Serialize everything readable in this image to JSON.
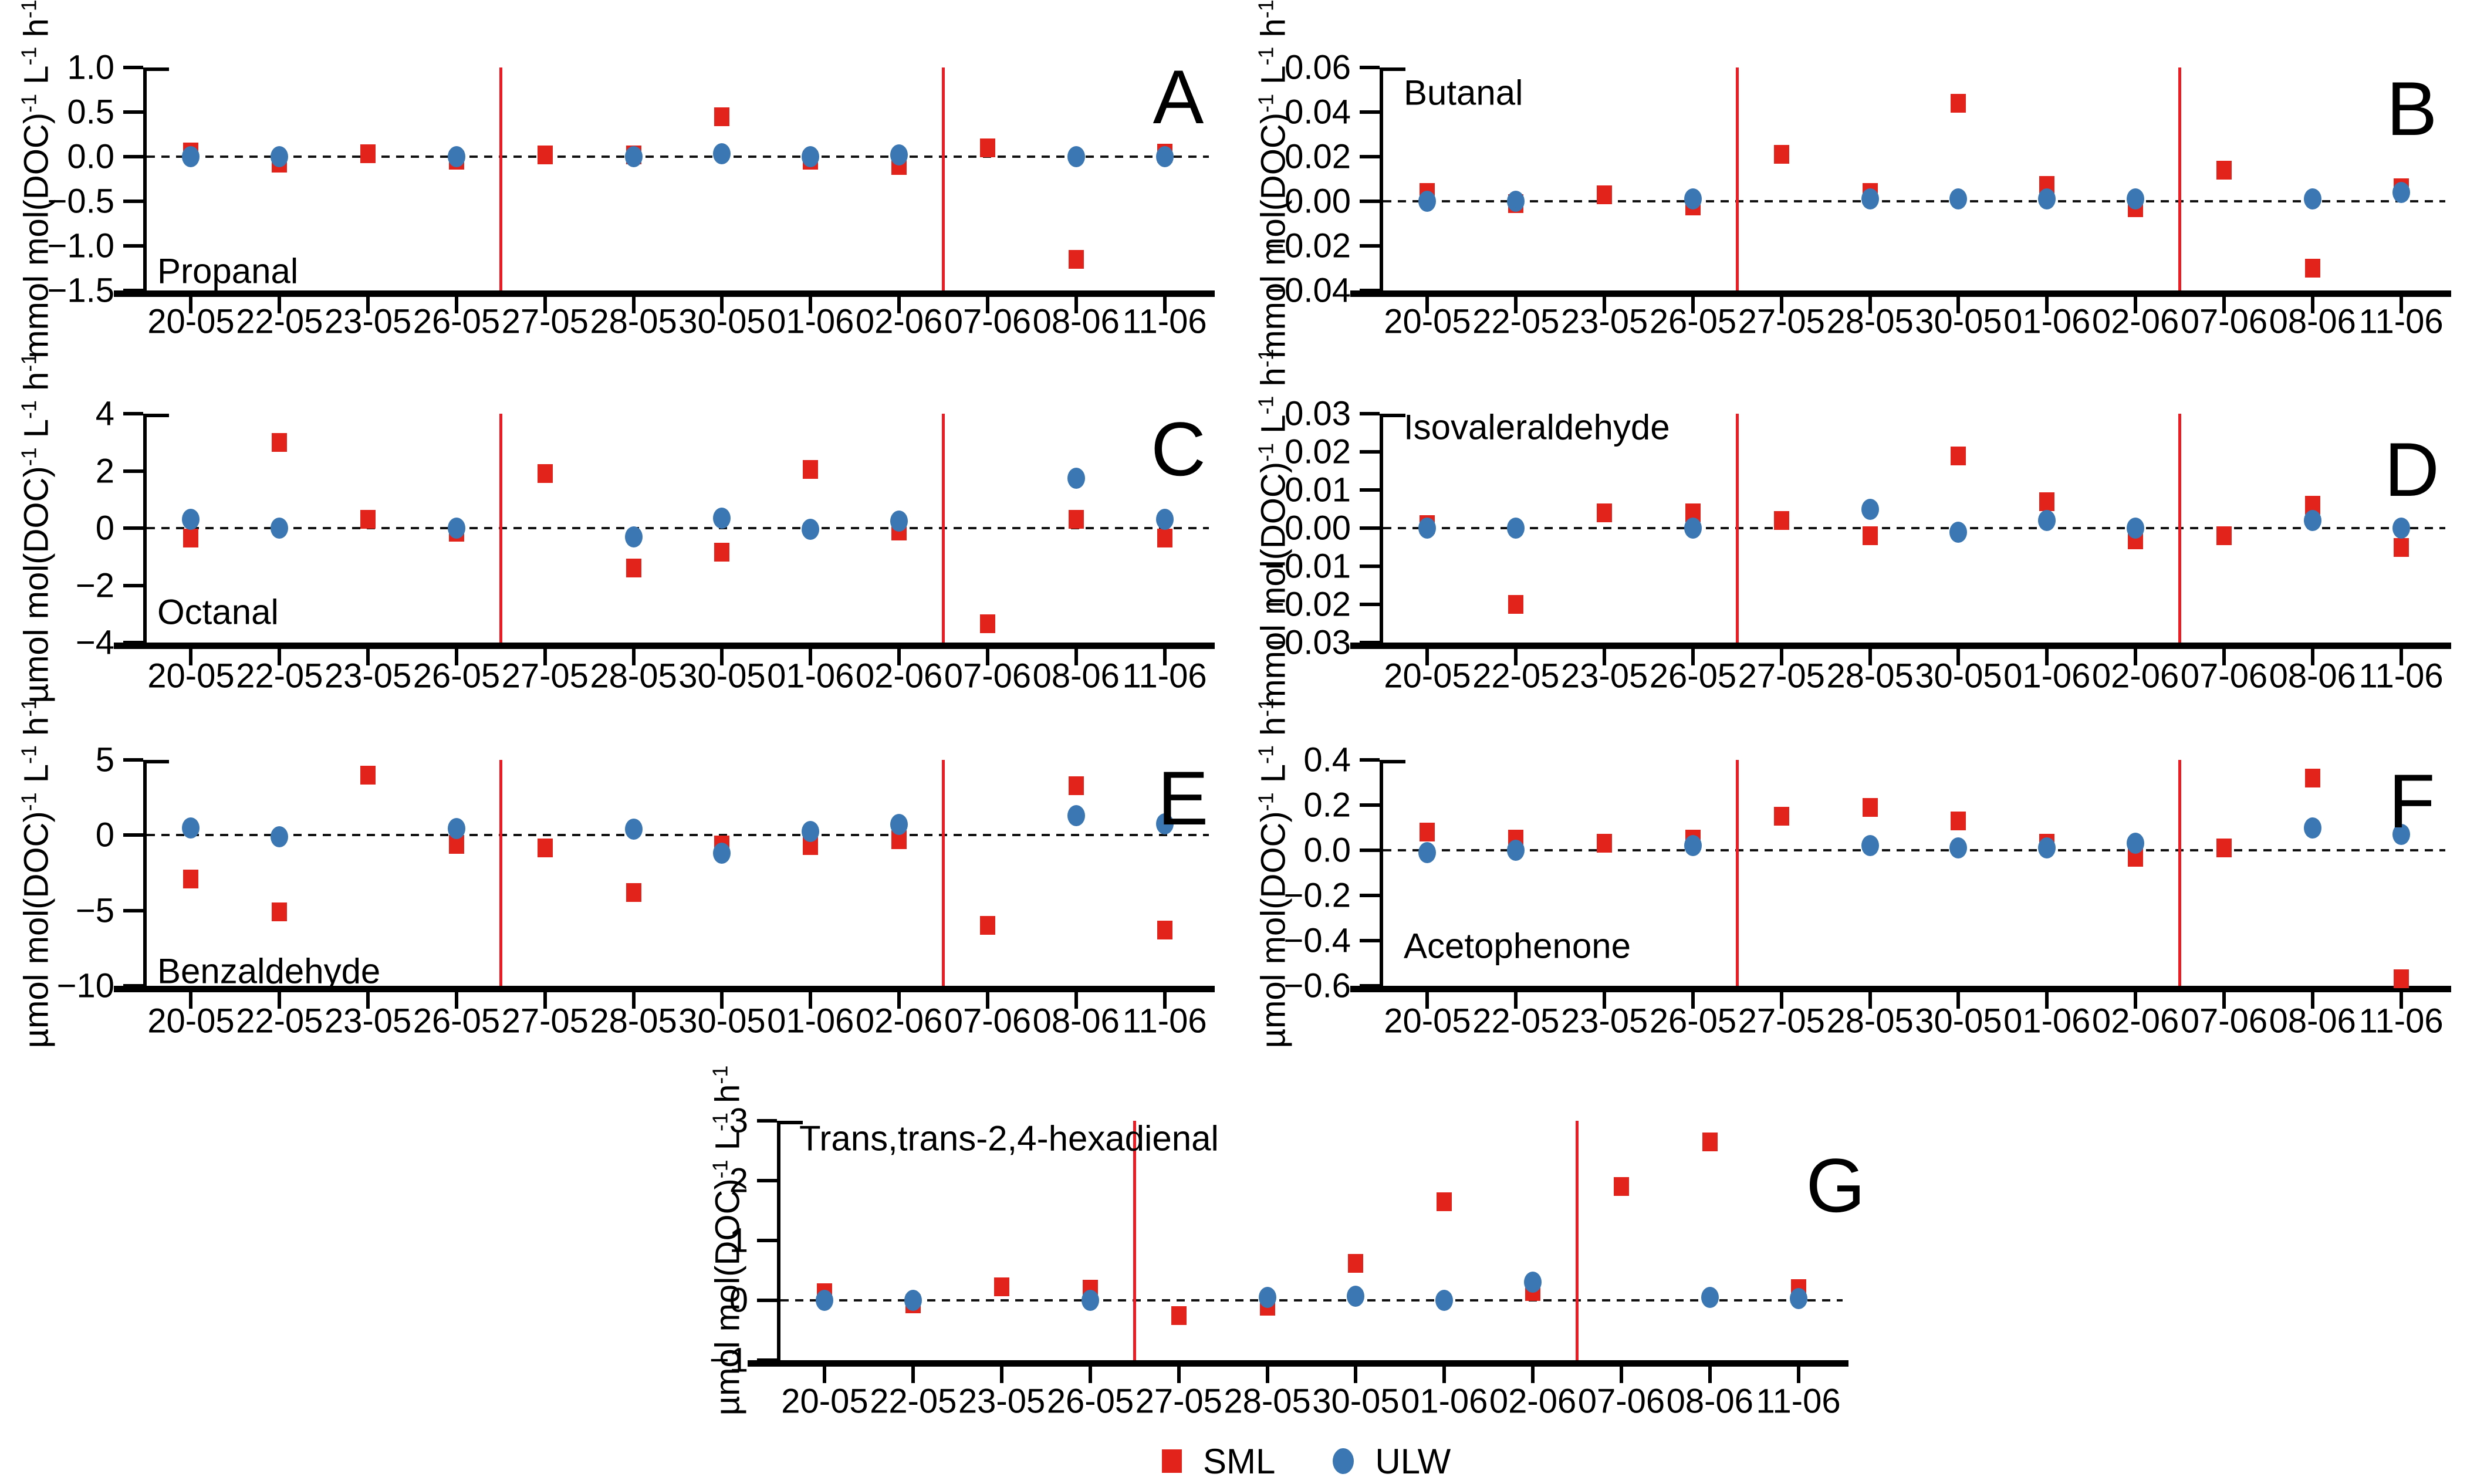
{
  "legend": {
    "items": [
      {
        "label": "SML",
        "marker": "square",
        "color": "#e2231b"
      },
      {
        "label": "ULW",
        "marker": "circle",
        "color": "#3b77b3"
      }
    ]
  },
  "colors": {
    "sml_marker": "#e2231b",
    "ulw_marker": "#3b77b3",
    "separator_line": "#ec1c24",
    "axis": "#000000"
  },
  "chart_data": {
    "type": "scatter",
    "categories": [
      "20-05",
      "22-05",
      "23-05",
      "26-05",
      "27-05",
      "28-05",
      "30-05",
      "01-06",
      "02-06",
      "07-06",
      "08-06",
      "11-06"
    ],
    "series_names": [
      "SML",
      "ULW"
    ],
    "separators_between": [
      [
        "26-05",
        "27-05"
      ],
      [
        "02-06",
        "07-06"
      ]
    ],
    "legend_position": "bottom-center",
    "grid": false,
    "panels": [
      {
        "letter": "A",
        "title": "Propanal",
        "ylabel": "mmol mol(DOC)^-1 L^-1 h^-1",
        "ylim": [
          -1.5,
          1.0
        ],
        "yticks": [
          {
            "v": 1.0,
            "label": "1.0"
          },
          {
            "v": 0.5,
            "label": "0.5"
          },
          {
            "v": 0.0,
            "label": "0.0"
          },
          {
            "v": -0.5,
            "label": "−0.5"
          },
          {
            "v": -1.0,
            "label": "−1.0"
          },
          {
            "v": -1.5,
            "label": "−1.5"
          }
        ],
        "series": [
          {
            "name": "SML",
            "values": [
              0.05,
              -0.07,
              0.03,
              -0.04,
              0.02,
              0.02,
              0.45,
              -0.04,
              -0.1,
              0.1,
              -1.15,
              0.04
            ]
          },
          {
            "name": "ULW",
            "values": [
              0.0,
              0.0,
              null,
              0.0,
              null,
              0.0,
              0.03,
              0.0,
              0.02,
              null,
              0.0,
              0.0
            ]
          }
        ]
      },
      {
        "letter": "B",
        "title": "Butanal",
        "ylabel": "mmol mol(DOC)^-1 L^-1 h^-1",
        "ylim": [
          -0.04,
          0.06
        ],
        "yticks": [
          {
            "v": 0.06,
            "label": "0.06"
          },
          {
            "v": 0.04,
            "label": "0.04"
          },
          {
            "v": 0.02,
            "label": "0.02"
          },
          {
            "v": 0.0,
            "label": "0.00"
          },
          {
            "v": -0.02,
            "label": "−0.02"
          },
          {
            "v": -0.04,
            "label": "−0.04"
          }
        ],
        "series": [
          {
            "name": "SML",
            "values": [
              0.004,
              -0.001,
              0.003,
              -0.002,
              0.021,
              0.004,
              0.044,
              0.007,
              -0.003,
              0.014,
              -0.03,
              0.006
            ]
          },
          {
            "name": "ULW",
            "values": [
              0.0,
              0.0,
              null,
              0.001,
              null,
              0.001,
              0.001,
              0.001,
              0.001,
              null,
              0.001,
              0.004
            ]
          }
        ]
      },
      {
        "letter": "C",
        "title": "Octanal",
        "ylabel": "µmol mol(DOC)^-1 L^-1 h^-1",
        "ylim": [
          -4,
          4
        ],
        "yticks": [
          {
            "v": 4,
            "label": "4"
          },
          {
            "v": 2,
            "label": "2"
          },
          {
            "v": 0,
            "label": "0"
          },
          {
            "v": -2,
            "label": "−2"
          },
          {
            "v": -4,
            "label": "−4"
          }
        ],
        "series": [
          {
            "name": "SML",
            "values": [
              -0.35,
              3.0,
              0.3,
              -0.15,
              1.9,
              -1.4,
              -0.85,
              2.05,
              -0.1,
              -3.35,
              0.3,
              -0.35
            ]
          },
          {
            "name": "ULW",
            "values": [
              0.3,
              0.0,
              null,
              0.0,
              null,
              -0.3,
              0.35,
              -0.05,
              0.25,
              null,
              1.75,
              0.3
            ]
          }
        ]
      },
      {
        "letter": "D",
        "title": "Isovaleraldehyde",
        "ylabel": "mmol mol(DOC)^-1 L^-1 h^-1",
        "ylim": [
          -0.03,
          0.03
        ],
        "yticks": [
          {
            "v": 0.03,
            "label": "0.03"
          },
          {
            "v": 0.02,
            "label": "0.02"
          },
          {
            "v": 0.01,
            "label": "0.01"
          },
          {
            "v": 0.0,
            "label": "0.00"
          },
          {
            "v": -0.01,
            "label": "−0.01"
          },
          {
            "v": -0.02,
            "label": "−0.02"
          },
          {
            "v": -0.03,
            "label": "−0.03"
          }
        ],
        "series": [
          {
            "name": "SML",
            "values": [
              0.001,
              -0.02,
              0.004,
              0.004,
              0.002,
              -0.002,
              0.019,
              0.007,
              -0.003,
              -0.002,
              0.006,
              -0.005
            ]
          },
          {
            "name": "ULW",
            "values": [
              0.0,
              0.0,
              null,
              0.0,
              null,
              0.005,
              -0.001,
              0.002,
              0.0,
              null,
              0.002,
              0.0
            ]
          }
        ]
      },
      {
        "letter": "E",
        "title": "Benzaldehyde",
        "ylabel": "µmol mol(DOC)^-1 L^-1 h^-1",
        "ylim": [
          -10,
          5
        ],
        "yticks": [
          {
            "v": 5,
            "label": "5"
          },
          {
            "v": 0,
            "label": "0"
          },
          {
            "v": -5,
            "label": "−5"
          },
          {
            "v": -10,
            "label": "−10"
          }
        ],
        "series": [
          {
            "name": "SML",
            "values": [
              -2.9,
              -5.1,
              4.0,
              -0.6,
              -0.85,
              -3.8,
              -0.65,
              -0.7,
              -0.3,
              -6.0,
              3.3,
              -6.3
            ]
          },
          {
            "name": "ULW",
            "values": [
              0.5,
              -0.1,
              null,
              0.45,
              null,
              0.4,
              -1.2,
              0.25,
              0.7,
              null,
              1.3,
              0.75
            ]
          }
        ]
      },
      {
        "letter": "F",
        "title": "Acetophenone",
        "ylabel": "µmol mol(DOC)^-1 L^-1 h^-1",
        "ylim": [
          -0.6,
          0.4
        ],
        "yticks": [
          {
            "v": 0.4,
            "label": "0.4"
          },
          {
            "v": 0.2,
            "label": "0.2"
          },
          {
            "v": 0.0,
            "label": "0.0"
          },
          {
            "v": -0.2,
            "label": "−0.2"
          },
          {
            "v": -0.4,
            "label": "−0.4"
          },
          {
            "v": -0.6,
            "label": "−0.6"
          }
        ],
        "series": [
          {
            "name": "SML",
            "values": [
              0.08,
              0.05,
              0.03,
              0.05,
              0.15,
              0.19,
              0.13,
              0.03,
              -0.03,
              0.01,
              0.32,
              -0.57
            ]
          },
          {
            "name": "ULW",
            "values": [
              -0.01,
              0.0,
              null,
              0.02,
              null,
              0.02,
              0.01,
              0.01,
              0.03,
              null,
              0.1,
              0.07
            ]
          }
        ]
      },
      {
        "letter": "G",
        "title": "Trans,trans-2,4-hexadienal",
        "ylabel": "µmol mol(DOC)^-1 L^-1 h^-1",
        "ylim": [
          -1,
          3
        ],
        "yticks": [
          {
            "v": 3,
            "label": "3"
          },
          {
            "v": 2,
            "label": "2"
          },
          {
            "v": 1,
            "label": "1"
          },
          {
            "v": 0,
            "label": "0"
          },
          {
            "v": -1,
            "label": "−1"
          }
        ],
        "series": [
          {
            "name": "SML",
            "values": [
              0.13,
              -0.06,
              0.23,
              0.19,
              -0.25,
              -0.1,
              0.62,
              1.65,
              0.15,
              1.9,
              2.65,
              0.2
            ]
          },
          {
            "name": "ULW",
            "values": [
              0.0,
              0.0,
              null,
              0.0,
              null,
              0.05,
              0.07,
              0.0,
              0.3,
              null,
              0.05,
              0.03
            ]
          }
        ]
      }
    ]
  }
}
